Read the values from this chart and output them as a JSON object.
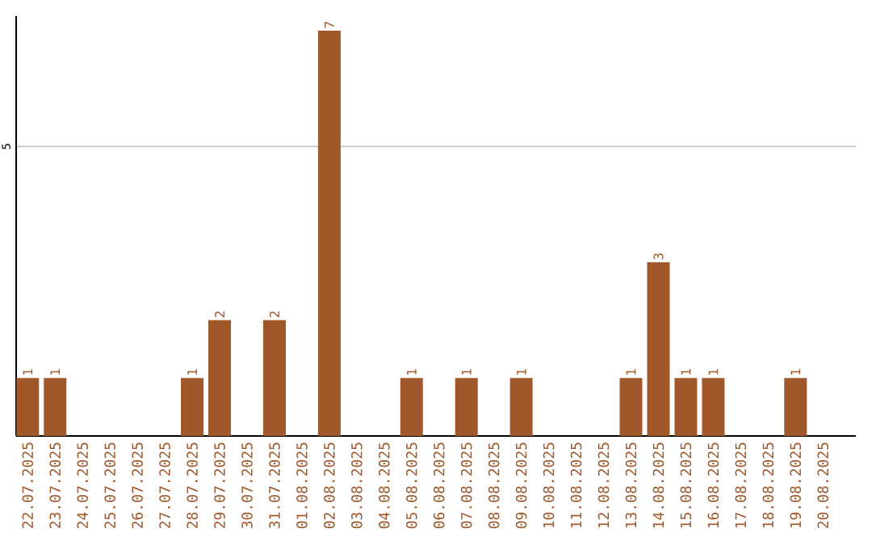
{
  "chart_data": {
    "type": "bar",
    "categories": [
      "22.07.2025",
      "23.07.2025",
      "24.07.2025",
      "25.07.2025",
      "26.07.2025",
      "27.07.2025",
      "28.07.2025",
      "29.07.2025",
      "30.07.2025",
      "31.07.2025",
      "01.08.2025",
      "02.08.2025",
      "03.08.2025",
      "04.08.2025",
      "05.08.2025",
      "06.08.2025",
      "07.08.2025",
      "08.08.2025",
      "09.08.2025",
      "10.08.2025",
      "11.08.2025",
      "12.08.2025",
      "13.08.2025",
      "14.08.2025",
      "15.08.2025",
      "16.08.2025",
      "17.08.2025",
      "18.08.2025",
      "19.08.2025",
      "20.08.2025"
    ],
    "values": [
      1,
      1,
      0,
      0,
      0,
      0,
      1,
      2,
      0,
      2,
      0,
      7,
      0,
      0,
      1,
      0,
      1,
      0,
      1,
      0,
      0,
      0,
      1,
      3,
      1,
      1,
      0,
      0,
      1,
      0
    ],
    "value_labels": [
      "1",
      "1",
      null,
      null,
      null,
      null,
      "1",
      "2",
      null,
      "2",
      null,
      "7",
      null,
      null,
      "1",
      null,
      "1",
      null,
      "1",
      null,
      null,
      null,
      "1",
      "3",
      "1",
      "1",
      null,
      null,
      "1",
      null
    ],
    "color": "#a0572a",
    "ylim": [
      0,
      7.25
    ],
    "yticks": [
      5
    ],
    "grid": "y"
  }
}
